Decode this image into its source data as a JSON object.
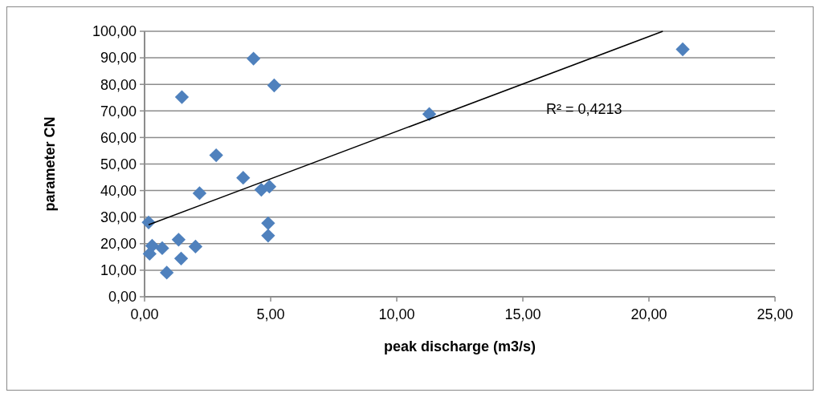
{
  "chart_data": {
    "type": "scatter",
    "xlabel": "peak discharge (m3/s)",
    "ylabel": "parameter CN",
    "grid": "y",
    "xlim": [
      0,
      25
    ],
    "ylim": [
      0,
      100
    ],
    "xticks": [
      {
        "value": 0,
        "label": "0,00"
      },
      {
        "value": 5,
        "label": "5,00"
      },
      {
        "value": 10,
        "label": "10,00"
      },
      {
        "value": 15,
        "label": "15,00"
      },
      {
        "value": 20,
        "label": "20,00"
      },
      {
        "value": 25,
        "label": "25,00"
      }
    ],
    "yticks": [
      {
        "value": 0,
        "label": "0,00"
      },
      {
        "value": 10,
        "label": "10,00"
      },
      {
        "value": 20,
        "label": "20,00"
      },
      {
        "value": 30,
        "label": "30,00"
      },
      {
        "value": 40,
        "label": "40,00"
      },
      {
        "value": 50,
        "label": "50,00"
      },
      {
        "value": 60,
        "label": "60,00"
      },
      {
        "value": 70,
        "label": "70,00"
      },
      {
        "value": 80,
        "label": "80,00"
      },
      {
        "value": 90,
        "label": "90,00"
      },
      {
        "value": 100,
        "label": "100,00"
      }
    ],
    "annotations": [
      "R² = 0,4213"
    ],
    "series": [
      {
        "marker": "diamond",
        "color": "#4f81bd",
        "x": [
          0.16,
          0.3,
          0.2,
          0.7,
          1.35,
          1.45,
          0.88,
          2.02,
          4.9,
          4.9,
          1.48,
          4.32,
          5.14,
          2.84,
          2.18,
          3.91,
          4.63,
          4.95,
          11.29,
          21.34
        ],
        "values": [
          28.0,
          19.2,
          16.2,
          18.3,
          21.5,
          14.4,
          9.1,
          18.9,
          27.7,
          23.0,
          75.2,
          89.7,
          79.6,
          53.3,
          39.0,
          44.8,
          40.3,
          41.5,
          68.8,
          93.2
        ]
      },
      {
        "type": "line",
        "color": "#000000",
        "x": [
          0.16,
          20.55
        ],
        "values": [
          27.1,
          100
        ]
      }
    ]
  }
}
